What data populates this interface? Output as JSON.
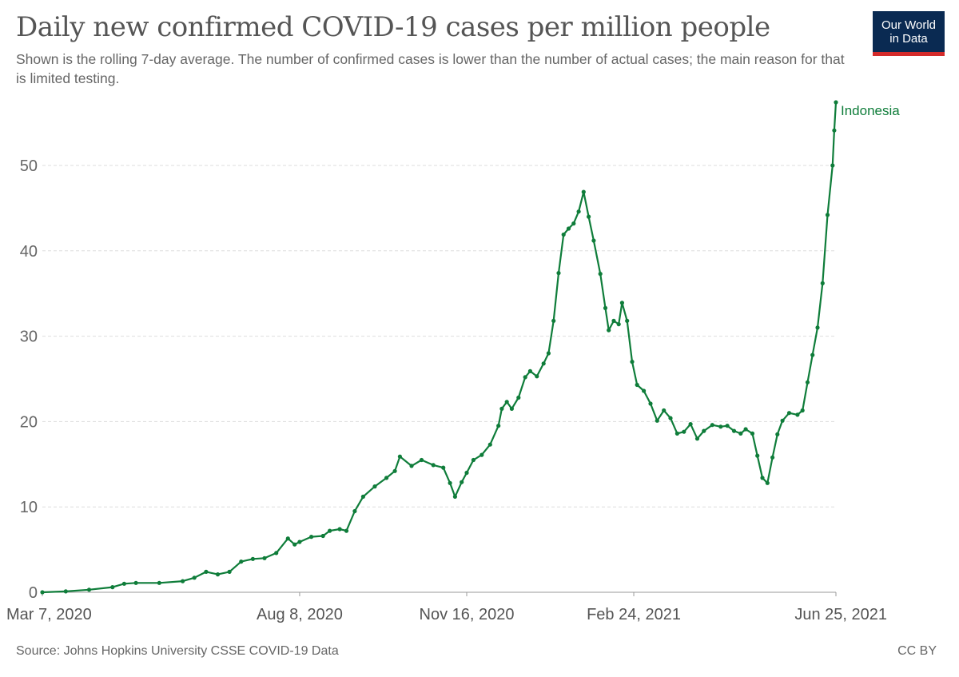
{
  "header": {
    "title": "Daily new confirmed COVID-19 cases per million people",
    "subtitle": "Shown is the rolling 7-day average. The number of confirmed cases is lower than the number of actual cases; the main reason for that is limited testing.",
    "logo_line1": "Our World",
    "logo_line2": "in Data"
  },
  "footer": {
    "source": "Source: Johns Hopkins University CSSE COVID-19 Data",
    "license": "CC BY"
  },
  "colors": {
    "series": "#0f7d3a",
    "grid": "#dddddd",
    "axis": "#999999",
    "logo_bg": "#0a2a52",
    "logo_stripe": "#d42a2a"
  },
  "chart_data": {
    "type": "line",
    "title": "Daily new confirmed COVID-19 cases per million people",
    "xlabel": "",
    "ylabel": "",
    "xlim": [
      "2020-03-07",
      "2021-06-25"
    ],
    "ylim": [
      0,
      57.5
    ],
    "yticks": [
      0,
      10,
      20,
      30,
      40,
      50
    ],
    "xticks": [
      {
        "date": "2020-03-07",
        "label": "Mar 7, 2020"
      },
      {
        "date": "2020-08-08",
        "label": "Aug 8, 2020"
      },
      {
        "date": "2020-11-16",
        "label": "Nov 16, 2020"
      },
      {
        "date": "2021-02-24",
        "label": "Feb 24, 2021"
      },
      {
        "date": "2021-06-25",
        "label": "Jun 25, 2021"
      }
    ],
    "grid": "horizontal dashed",
    "legend": "end-of-line label",
    "series": [
      {
        "name": "Indonesia",
        "points": [
          [
            "2020-03-07",
            0.0
          ],
          [
            "2020-03-21",
            0.1
          ],
          [
            "2020-04-04",
            0.3
          ],
          [
            "2020-04-18",
            0.6
          ],
          [
            "2020-04-25",
            1.0
          ],
          [
            "2020-05-02",
            1.1
          ],
          [
            "2020-05-16",
            1.1
          ],
          [
            "2020-05-30",
            1.3
          ],
          [
            "2020-06-06",
            1.7
          ],
          [
            "2020-06-13",
            2.4
          ],
          [
            "2020-06-20",
            2.1
          ],
          [
            "2020-06-27",
            2.4
          ],
          [
            "2020-07-04",
            3.6
          ],
          [
            "2020-07-11",
            3.9
          ],
          [
            "2020-07-18",
            4.0
          ],
          [
            "2020-07-25",
            4.6
          ],
          [
            "2020-08-01",
            6.3
          ],
          [
            "2020-08-05",
            5.6
          ],
          [
            "2020-08-08",
            5.9
          ],
          [
            "2020-08-15",
            6.5
          ],
          [
            "2020-08-22",
            6.6
          ],
          [
            "2020-08-26",
            7.2
          ],
          [
            "2020-09-01",
            7.4
          ],
          [
            "2020-09-05",
            7.2
          ],
          [
            "2020-09-10",
            9.5
          ],
          [
            "2020-09-15",
            11.2
          ],
          [
            "2020-09-22",
            12.4
          ],
          [
            "2020-09-29",
            13.4
          ],
          [
            "2020-10-04",
            14.2
          ],
          [
            "2020-10-07",
            15.9
          ],
          [
            "2020-10-14",
            14.8
          ],
          [
            "2020-10-20",
            15.5
          ],
          [
            "2020-10-27",
            14.9
          ],
          [
            "2020-11-02",
            14.6
          ],
          [
            "2020-11-06",
            12.8
          ],
          [
            "2020-11-09",
            11.2
          ],
          [
            "2020-11-13",
            12.9
          ],
          [
            "2020-11-16",
            14.0
          ],
          [
            "2020-11-20",
            15.5
          ],
          [
            "2020-11-25",
            16.1
          ],
          [
            "2020-11-30",
            17.3
          ],
          [
            "2020-12-05",
            19.5
          ],
          [
            "2020-12-07",
            21.5
          ],
          [
            "2020-12-10",
            22.3
          ],
          [
            "2020-12-13",
            21.5
          ],
          [
            "2020-12-17",
            22.8
          ],
          [
            "2020-12-21",
            25.2
          ],
          [
            "2020-12-24",
            25.9
          ],
          [
            "2020-12-28",
            25.3
          ],
          [
            "2021-01-01",
            26.8
          ],
          [
            "2021-01-04",
            28.0
          ],
          [
            "2021-01-07",
            31.8
          ],
          [
            "2021-01-10",
            37.4
          ],
          [
            "2021-01-13",
            41.9
          ],
          [
            "2021-01-16",
            42.6
          ],
          [
            "2021-01-19",
            43.2
          ],
          [
            "2021-01-22",
            44.6
          ],
          [
            "2021-01-25",
            46.9
          ],
          [
            "2021-01-28",
            44.0
          ],
          [
            "2021-01-31",
            41.2
          ],
          [
            "2021-02-04",
            37.3
          ],
          [
            "2021-02-07",
            33.3
          ],
          [
            "2021-02-09",
            30.7
          ],
          [
            "2021-02-12",
            31.8
          ],
          [
            "2021-02-15",
            31.4
          ],
          [
            "2021-02-17",
            33.9
          ],
          [
            "2021-02-20",
            31.8
          ],
          [
            "2021-02-23",
            27.0
          ],
          [
            "2021-02-26",
            24.3
          ],
          [
            "2021-03-02",
            23.6
          ],
          [
            "2021-03-06",
            22.1
          ],
          [
            "2021-03-10",
            20.1
          ],
          [
            "2021-03-14",
            21.3
          ],
          [
            "2021-03-18",
            20.4
          ],
          [
            "2021-03-22",
            18.6
          ],
          [
            "2021-03-26",
            18.8
          ],
          [
            "2021-03-30",
            19.7
          ],
          [
            "2021-04-03",
            18.0
          ],
          [
            "2021-04-07",
            18.9
          ],
          [
            "2021-04-12",
            19.6
          ],
          [
            "2021-04-17",
            19.4
          ],
          [
            "2021-04-21",
            19.5
          ],
          [
            "2021-04-25",
            18.9
          ],
          [
            "2021-04-29",
            18.6
          ],
          [
            "2021-05-02",
            19.1
          ],
          [
            "2021-05-06",
            18.6
          ],
          [
            "2021-05-09",
            16.0
          ],
          [
            "2021-05-12",
            13.4
          ],
          [
            "2021-05-15",
            12.8
          ],
          [
            "2021-05-18",
            15.8
          ],
          [
            "2021-05-21",
            18.5
          ],
          [
            "2021-05-24",
            20.1
          ],
          [
            "2021-05-28",
            21.0
          ],
          [
            "2021-06-02",
            20.8
          ],
          [
            "2021-06-05",
            21.3
          ],
          [
            "2021-06-08",
            24.6
          ],
          [
            "2021-06-11",
            27.8
          ],
          [
            "2021-06-14",
            31.0
          ],
          [
            "2021-06-17",
            36.2
          ],
          [
            "2021-06-20",
            44.2
          ],
          [
            "2021-06-23",
            50.0
          ],
          [
            "2021-06-24",
            54.1
          ],
          [
            "2021-06-25",
            57.4
          ]
        ]
      }
    ]
  }
}
